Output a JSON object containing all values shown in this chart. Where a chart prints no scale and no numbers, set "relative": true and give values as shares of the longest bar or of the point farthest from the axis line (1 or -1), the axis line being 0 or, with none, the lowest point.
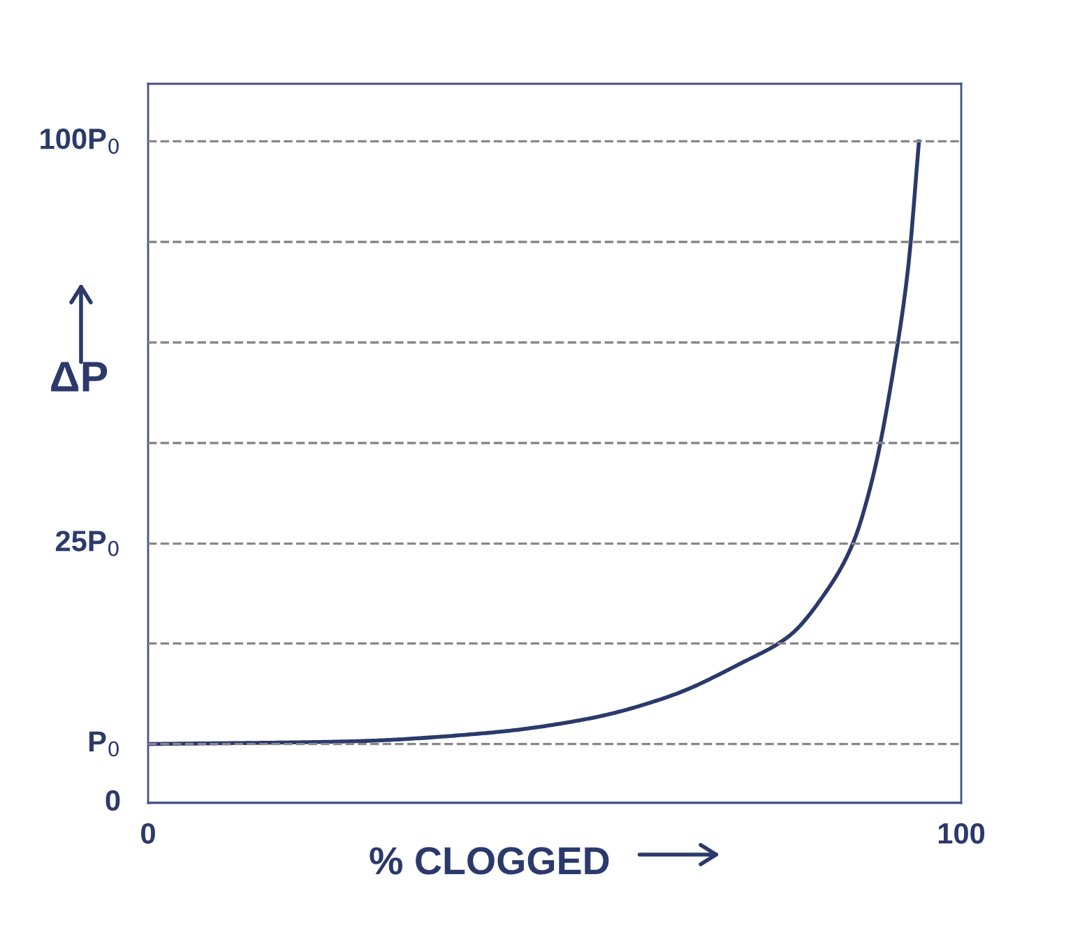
{
  "chart_data": {
    "type": "line",
    "xlabel": "% CLOGGED",
    "ylabel": "ΔP",
    "relative": true,
    "x": [
      0,
      24.7,
      41.9,
      54,
      64.3,
      72.9,
      78.9,
      83.2,
      86.6,
      89.2,
      91.8,
      93.5,
      94.8
    ],
    "series": [
      {
        "color": "#2b3a6b",
        "values": [
          0.089,
          0.093,
          0.106,
          0.127,
          0.162,
          0.211,
          0.253,
          0.316,
          0.39,
          0.496,
          0.665,
          0.812,
          1
        ]
      }
    ],
    "xlim": [
      0,
      100
    ],
    "xticks": [
      0,
      100
    ],
    "ref_lines": [
      {
        "axis": "y",
        "value": 0,
        "label": "0",
        "line_style": "solid",
        "color": "#44527f"
      },
      {
        "axis": "y",
        "value": 0.089,
        "label": "P$_{0}$",
        "line_style": "dashed",
        "color": "#888888"
      },
      {
        "axis": "y",
        "value": 0.241,
        "label": null,
        "line_style": "dashed",
        "color": "#888888"
      },
      {
        "axis": "y",
        "value": 0.392,
        "label": "25P$_{0}$",
        "line_style": "dashed",
        "color": "#888888"
      },
      {
        "axis": "y",
        "value": 0.544,
        "label": null,
        "line_style": "dashed",
        "color": "#888888"
      },
      {
        "axis": "y",
        "value": 0.696,
        "label": null,
        "line_style": "dashed",
        "color": "#888888"
      },
      {
        "axis": "y",
        "value": 0.848,
        "label": null,
        "line_style": "dashed",
        "color": "#888888"
      },
      {
        "axis": "y",
        "value": 1,
        "label": "100P$_{0}$",
        "line_style": "dashed",
        "color": "#888888"
      }
    ],
    "marker": "none",
    "line_style": "solid"
  }
}
